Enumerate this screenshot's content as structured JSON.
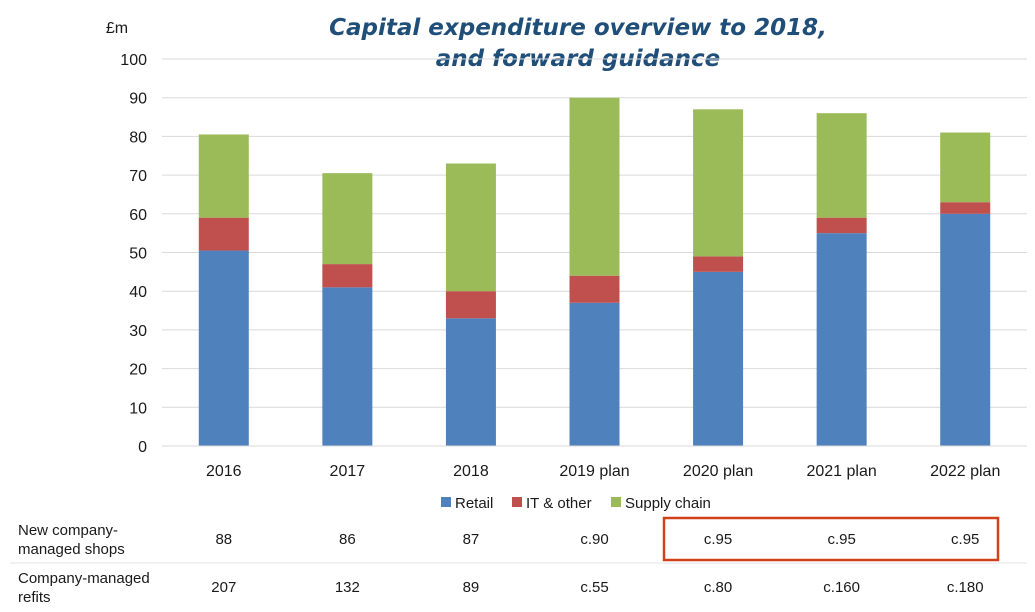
{
  "chart_data": {
    "type": "bar",
    "stacked": true,
    "title_lines": [
      "Capital expenditure overview to 2018,",
      "and forward guidance"
    ],
    "ylabel": "£m",
    "xlabel": "",
    "ylim": [
      0,
      100
    ],
    "yticks": [
      0,
      10,
      20,
      30,
      40,
      50,
      60,
      70,
      80,
      90,
      100
    ],
    "grid": true,
    "legend_position": "bottom",
    "categories": [
      "2016",
      "2017",
      "2018",
      "2019 plan",
      "2020 plan",
      "2021 plan",
      "2022 plan"
    ],
    "series": [
      {
        "name": "Retail",
        "color": "#4f81bd",
        "values": [
          50.5,
          41,
          33,
          37,
          45,
          55,
          60
        ]
      },
      {
        "name": "IT & other",
        "color": "#c0504d",
        "values": [
          8.5,
          6,
          7,
          7,
          4,
          4,
          3
        ]
      },
      {
        "name": "Supply chain",
        "color": "#9bbb59",
        "values": [
          21.5,
          23.5,
          33,
          46,
          38,
          27,
          18
        ]
      }
    ]
  },
  "table": {
    "rows": [
      {
        "label_lines": [
          "New company-",
          "managed shops"
        ],
        "values": [
          "88",
          "86",
          "87",
          "c.90",
          "c.95",
          "c.95",
          "c.95"
        ]
      },
      {
        "label_lines": [
          "Company-managed",
          "refits"
        ],
        "values": [
          "207",
          "132",
          "89",
          "c.55",
          "c.80",
          "c.160",
          "c.180"
        ]
      }
    ],
    "highlight_color": "#d0401b"
  }
}
